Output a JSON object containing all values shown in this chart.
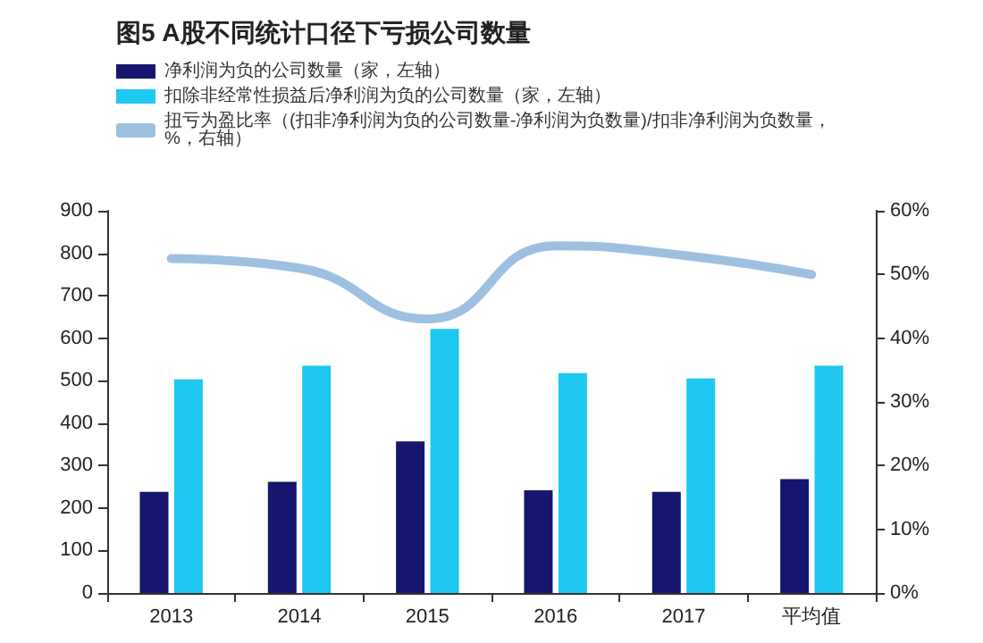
{
  "chart_data": {
    "type": "bar",
    "title": "图5 A股不同统计口径下亏损公司数量",
    "categories": [
      "2013",
      "2014",
      "2015",
      "2016",
      "2017",
      "平均值"
    ],
    "series": [
      {
        "name": "净利润为负的公司数量（家，左轴）",
        "color": "#16166e",
        "values": [
          238,
          262,
          357,
          242,
          238,
          268
        ]
      },
      {
        "name": "扣除非经常性损益后净利润为负的公司数量（家，左轴）",
        "color": "#1ec8f0",
        "values": [
          503,
          535,
          622,
          518,
          505,
          535
        ]
      },
      {
        "name": "扭亏为盈比率（(扣非净利润为负的公司数量-净利润为负数量)/扣非净利润为负数量，%，右轴）",
        "type": "line",
        "axis": "y2",
        "color": "#9ec0e0",
        "values": [
          52.5,
          51,
          43,
          54.5,
          53,
          50
        ]
      }
    ],
    "ylim": [
      0,
      900
    ],
    "yticks": [
      0,
      100,
      200,
      300,
      400,
      500,
      600,
      700,
      800,
      900
    ],
    "y2lim": [
      0,
      60
    ],
    "y2ticks": [
      {
        "value": 0,
        "label": "0%"
      },
      {
        "value": 10,
        "label": "10%"
      },
      {
        "value": 20,
        "label": "20%"
      },
      {
        "value": 30,
        "label": "30%"
      },
      {
        "value": 40,
        "label": "40%"
      },
      {
        "value": 50,
        "label": "50%"
      },
      {
        "value": 60,
        "label": "60%"
      }
    ],
    "marker": "none",
    "grid": false,
    "legend": "top left"
  }
}
